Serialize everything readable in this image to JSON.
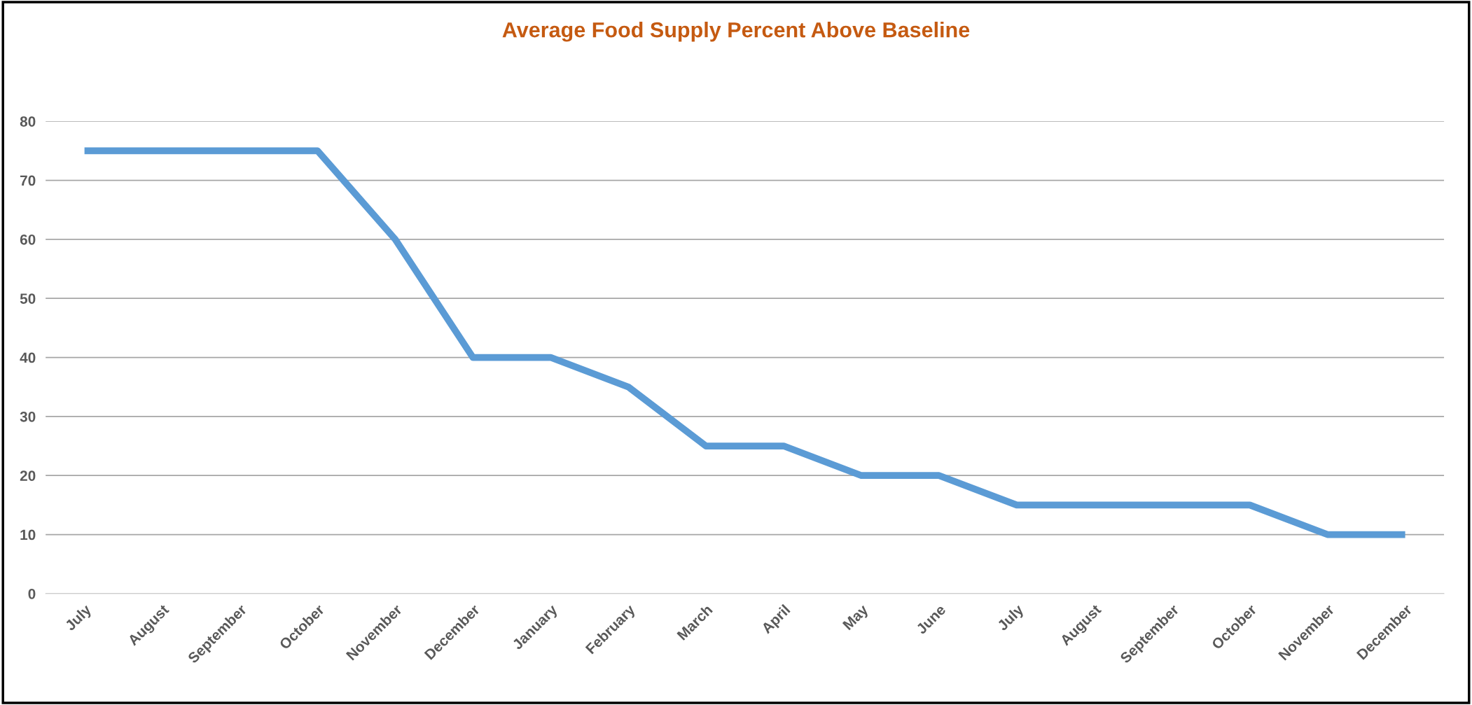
{
  "chart_data": {
    "type": "line",
    "title": "Average Food Supply Percent Above Baseline",
    "categories": [
      "July",
      "August",
      "September",
      "October",
      "November",
      "December",
      "January",
      "February",
      "March",
      "April",
      "May",
      "June",
      "July",
      "August",
      "September",
      "October",
      "November",
      "December"
    ],
    "series": [
      {
        "color": "#5b9bd5",
        "values": [
          75,
          75,
          75,
          75,
          60,
          40,
          40,
          35,
          25,
          25,
          20,
          20,
          15,
          15,
          15,
          15,
          10,
          10
        ]
      }
    ],
    "ylim": [
      0,
      80
    ],
    "yticks": [
      0,
      10,
      20,
      30,
      40,
      50,
      60,
      70,
      80
    ],
    "grid": "y",
    "legend": false,
    "marker": "none",
    "line_style": "solid"
  }
}
